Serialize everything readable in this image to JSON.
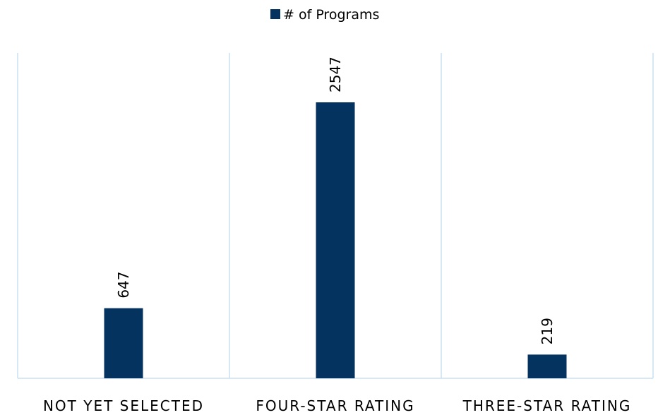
{
  "chart_data": {
    "type": "bar",
    "series": [
      {
        "name": "# of Programs",
        "color": "#04335f",
        "values": [
          647,
          2547,
          219
        ]
      }
    ],
    "categories": [
      "NOT YET SELECTED",
      "FOUR-STAR RATING",
      "THREE-STAR RATING"
    ],
    "legend": "top"
  }
}
